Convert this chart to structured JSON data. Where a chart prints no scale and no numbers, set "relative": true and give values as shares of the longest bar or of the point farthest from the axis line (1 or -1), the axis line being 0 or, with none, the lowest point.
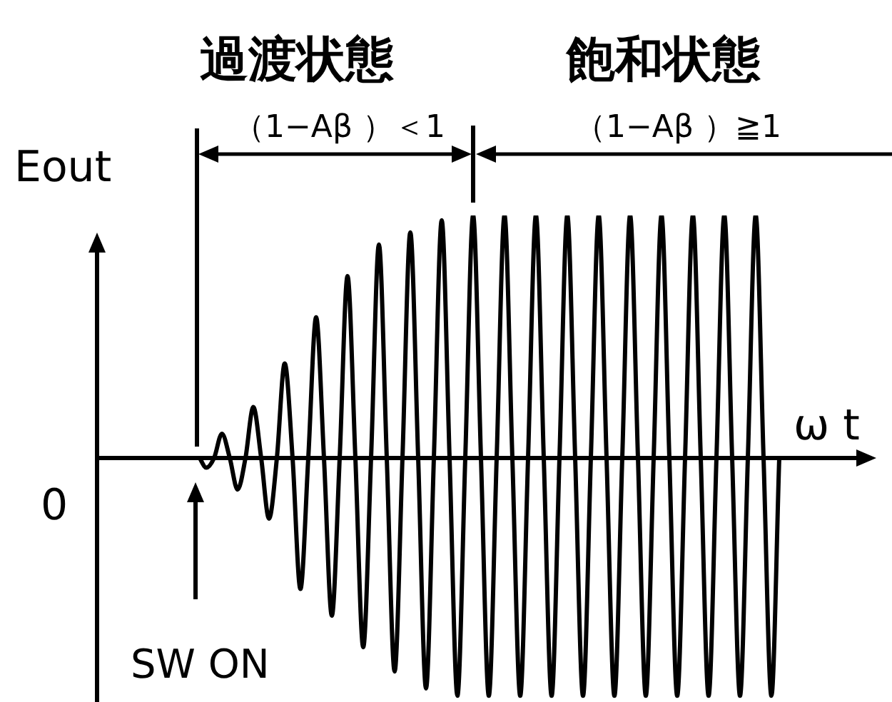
{
  "chart_data": {
    "type": "line",
    "relative": true,
    "xlabel": "ω t",
    "ylabel": "Eout",
    "marker": "none",
    "line_style": "solid",
    "annotations": [
      "過渡状態",
      "（1−Aβ ）＜1",
      "飽和状態",
      "（1−Aβ ）≧1",
      "0",
      "SW ON"
    ],
    "categories": [
      null,
      null,
      null,
      null,
      null,
      null,
      null,
      null,
      null,
      null,
      null,
      null,
      null,
      null,
      null,
      null,
      null,
      null,
      null,
      null,
      null,
      null,
      null,
      null,
      null,
      null,
      null,
      null,
      null,
      null,
      null,
      null,
      null,
      null,
      null,
      null,
      null,
      null,
      null,
      null,
      null,
      null,
      null,
      null,
      null,
      null,
      null,
      null,
      null,
      null,
      null,
      null,
      null,
      null,
      null,
      null,
      null,
      null,
      null,
      null,
      null,
      null,
      null,
      null,
      null,
      null,
      null,
      null,
      null,
      null,
      null,
      null,
      null,
      null,
      null,
      null,
      null
    ],
    "series": [
      {
        "color": "#000000",
        "values": [
          0,
          0,
          0,
          -0.04,
          0,
          0.1,
          0,
          -0.13,
          0,
          0.21,
          0,
          -0.25,
          0,
          0.39,
          0,
          -0.54,
          0,
          0.58,
          0,
          -0.65,
          0,
          0.75,
          0,
          -0.78,
          0,
          0.88,
          0,
          -0.88,
          0,
          0.93,
          0,
          -0.95,
          0,
          0.98,
          0,
          -0.98,
          0,
          1,
          0,
          -0.98,
          0,
          1,
          0,
          -0.98,
          0,
          1,
          0,
          -0.98,
          0,
          1,
          0,
          -0.98,
          0,
          1,
          0,
          -0.98,
          0,
          1,
          0,
          -0.98,
          0,
          1,
          0,
          -0.98,
          0,
          1,
          0,
          -0.98,
          0,
          1,
          0,
          -0.98,
          0,
          1,
          0,
          -0.98,
          0
        ]
      }
    ]
  }
}
